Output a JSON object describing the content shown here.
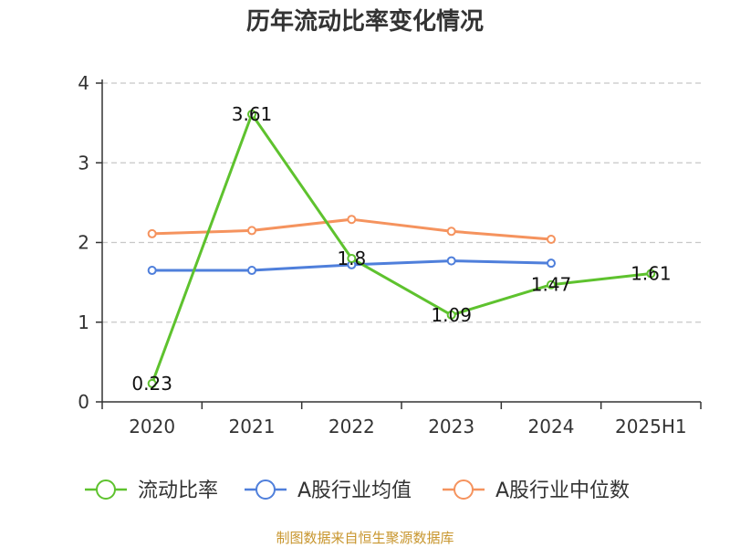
{
  "chart_data": {
    "type": "line",
    "title": "历年流动比率变化情况",
    "categories": [
      "2020",
      "2021",
      "2022",
      "2023",
      "2024",
      "2025H1"
    ],
    "ylim": [
      0,
      4
    ],
    "yticks": [
      "0",
      "1",
      "2",
      "3",
      "4"
    ],
    "grid": "horizontal-dashed",
    "legend_position": "bottom",
    "series": [
      {
        "name": "流动比率",
        "color": "#5ec22e",
        "values": [
          0.23,
          3.61,
          1.8,
          1.09,
          1.47,
          1.61
        ],
        "labels": [
          "0.23",
          "3.61",
          "1.8",
          "1.09",
          "1.47",
          "1.61"
        ]
      },
      {
        "name": "A股行业均值",
        "color": "#4f7fdb",
        "values": [
          1.65,
          1.65,
          1.72,
          1.77,
          1.74,
          null
        ]
      },
      {
        "name": "A股行业中位数",
        "color": "#f5935e",
        "values": [
          2.11,
          2.15,
          2.29,
          2.14,
          2.04,
          null
        ]
      }
    ]
  },
  "footer": {
    "source": "制图数据来自恒生聚源数据库"
  }
}
